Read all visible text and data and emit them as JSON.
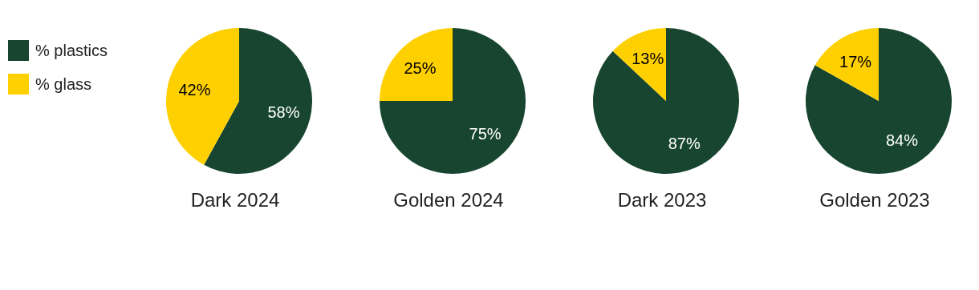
{
  "chart_data": [
    {
      "type": "pie",
      "title": "Dark 2024",
      "categories": [
        "% plastics",
        "% glass"
      ],
      "values": [
        58,
        42
      ],
      "colors": [
        "#17452f",
        "#ffd000"
      ],
      "value_labels": [
        "58%",
        "42%"
      ],
      "legend": "left"
    },
    {
      "type": "pie",
      "title": "Golden 2024",
      "categories": [
        null,
        null
      ],
      "values": [
        75,
        25
      ],
      "colors": [
        "#17452f",
        "#ffd000"
      ],
      "value_labels": [
        "75%",
        "25%"
      ]
    },
    {
      "type": "pie",
      "title": "Dark 2023",
      "categories": [
        null,
        null
      ],
      "values": [
        87,
        13
      ],
      "colors": [
        "#17452f",
        "#ffd000"
      ],
      "value_labels": [
        "87%",
        "13%"
      ]
    },
    {
      "type": "pie",
      "title": "Golden 2023",
      "categories": [
        null,
        null
      ],
      "values": [
        84,
        17
      ],
      "colors": [
        "#17452f",
        "#ffd000"
      ],
      "value_labels": [
        "84%",
        "17%"
      ]
    }
  ]
}
